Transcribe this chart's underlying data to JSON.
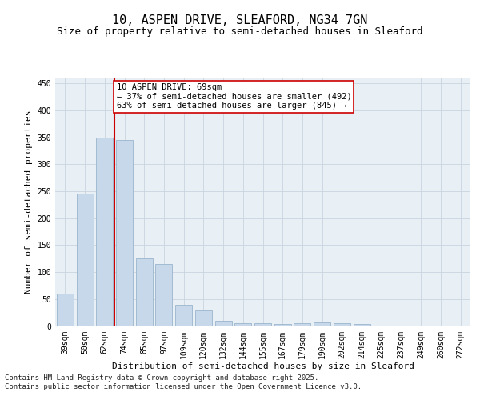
{
  "title_line1": "10, ASPEN DRIVE, SLEAFORD, NG34 7GN",
  "title_line2": "Size of property relative to semi-detached houses in Sleaford",
  "xlabel": "Distribution of semi-detached houses by size in Sleaford",
  "ylabel": "Number of semi-detached properties",
  "categories": [
    "39sqm",
    "50sqm",
    "62sqm",
    "74sqm",
    "85sqm",
    "97sqm",
    "109sqm",
    "120sqm",
    "132sqm",
    "144sqm",
    "155sqm",
    "167sqm",
    "179sqm",
    "190sqm",
    "202sqm",
    "214sqm",
    "225sqm",
    "237sqm",
    "249sqm",
    "260sqm",
    "272sqm"
  ],
  "values": [
    60,
    245,
    350,
    345,
    125,
    115,
    39,
    29,
    10,
    5,
    5,
    3,
    5,
    6,
    5,
    4,
    0,
    0,
    0,
    0,
    0
  ],
  "bar_color": "#c8d8eb",
  "bar_edge_color": "#9ab5cc",
  "vline_color": "#cc0000",
  "annotation_text": "10 ASPEN DRIVE: 69sqm\n← 37% of semi-detached houses are smaller (492)\n63% of semi-detached houses are larger (845) →",
  "annotation_box_facecolor": "#ffffff",
  "annotation_box_edgecolor": "#cc0000",
  "ylim": [
    0,
    460
  ],
  "yticks": [
    0,
    50,
    100,
    150,
    200,
    250,
    300,
    350,
    400,
    450
  ],
  "grid_color": "#c8d4e0",
  "background_color": "#e8eff5",
  "footer_text": "Contains HM Land Registry data © Crown copyright and database right 2025.\nContains public sector information licensed under the Open Government Licence v3.0.",
  "title_fontsize": 11,
  "subtitle_fontsize": 9,
  "axis_label_fontsize": 8,
  "tick_fontsize": 7,
  "annotation_fontsize": 7.5,
  "footer_fontsize": 6.5
}
